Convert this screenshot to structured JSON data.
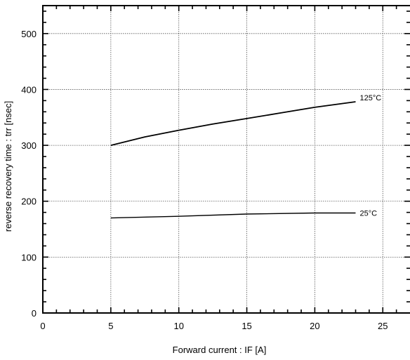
{
  "chart_data": {
    "type": "line",
    "title": "",
    "xlabel": "Forward current  :  IF [A]",
    "ylabel": "reverse recovery time : trr  [nsec]",
    "xlim": [
      0,
      27
    ],
    "ylim": [
      0,
      550
    ],
    "x_ticks": [
      0,
      5,
      10,
      15,
      20,
      25
    ],
    "y_ticks": [
      0,
      100,
      200,
      300,
      400,
      500
    ],
    "grid": true,
    "legend": "none",
    "series": [
      {
        "name": "125°C",
        "x": [
          5,
          7.5,
          10,
          12.5,
          15,
          17.5,
          20,
          23
        ],
        "y": [
          300,
          315,
          327,
          338,
          348,
          358,
          368,
          378
        ]
      },
      {
        "name": "25°C",
        "x": [
          5,
          10,
          15,
          20,
          23
        ],
        "y": [
          170,
          173,
          177,
          179,
          179
        ]
      }
    ]
  }
}
